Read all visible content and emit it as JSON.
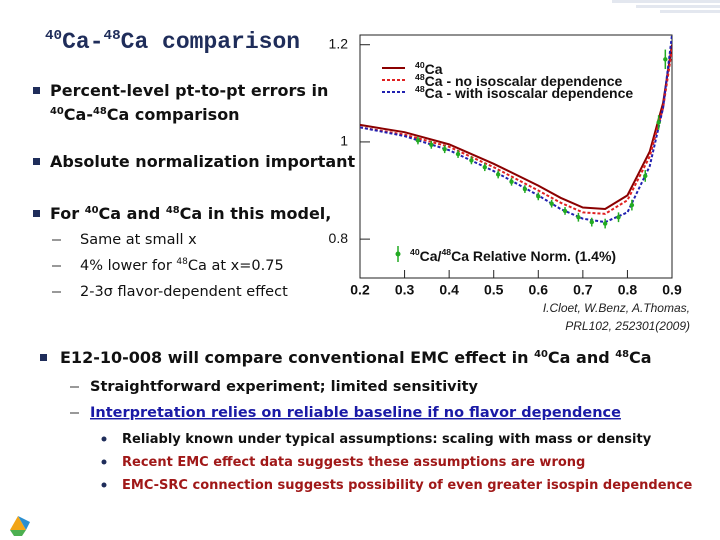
{
  "title": [
    {
      "sup": "40"
    },
    {
      "t": "Ca-"
    },
    {
      "sup": "48"
    },
    {
      "t": "Ca comparison"
    }
  ],
  "left_bullets": [
    {
      "lines": [
        [
          {
            "t": "Percent-level pt-to-pt errors in"
          }
        ],
        [
          {
            "sup": "40"
          },
          {
            "t": "Ca-"
          },
          {
            "sup": "48"
          },
          {
            "t": "Ca comparison"
          }
        ]
      ]
    },
    {
      "lines": [
        [
          {
            "t": "Absolute normalization important"
          }
        ]
      ]
    },
    {
      "lines": [
        [
          {
            "t": "For "
          },
          {
            "sup": "40"
          },
          {
            "t": "Ca and "
          },
          {
            "sup": "48"
          },
          {
            "t": "Ca in this model,"
          }
        ]
      ],
      "children": [
        {
          "lines": [
            [
              {
                "t": "Same at small x"
              }
            ]
          ]
        },
        {
          "lines": [
            [
              {
                "t": "4% lower for "
              },
              {
                "sup": "48"
              },
              {
                "t": "Ca at x=0.75"
              }
            ]
          ]
        },
        {
          "lines": [
            [
              {
                "t": "2-3σ flavor-dependent effect"
              }
            ]
          ]
        }
      ]
    }
  ],
  "bottom_bullets": [
    {
      "lines": [
        [
          {
            "t": "E12-10-008 will compare conventional EMC effect in "
          },
          {
            "sup": "40"
          },
          {
            "t": "Ca and "
          },
          {
            "sup": "48"
          },
          {
            "t": "Ca"
          }
        ]
      ],
      "children": [
        {
          "lines": [
            [
              {
                "t": "Straightforward experiment; limited sensitivity"
              }
            ]
          ]
        },
        {
          "lines": [
            [
              {
                "t": "Interpretation relies on reliable baseline if no flavor dependence"
              }
            ]
          ],
          "color": "#1a1aa6",
          "underline": true,
          "children": [
            {
              "lines": [
                [
                  {
                    "t": "Reliably known under typical assumptions: scaling with mass or density"
                  }
                ]
              ]
            },
            {
              "lines": [
                [
                  {
                    "t": "Recent EMC effect data suggests these assumptions are wrong"
                  }
                ]
              ],
              "color": "#a01818"
            },
            {
              "lines": [
                [
                  {
                    "t": "EMC-SRC connection suggests possibility of even greater isospin dependence"
                  }
                ]
              ],
              "color": "#a01818"
            }
          ]
        }
      ]
    }
  ],
  "chart_data": {
    "type": "line",
    "xlim": [
      0.2,
      0.9
    ],
    "xticks": [
      0.2,
      0.3,
      0.4,
      0.5,
      0.6,
      0.7,
      0.8,
      0.9
    ],
    "ylim": [
      0.72,
      1.22
    ],
    "yticks": [
      0.8,
      1,
      1.2
    ],
    "x": [
      0.2,
      0.3,
      0.4,
      0.5,
      0.6,
      0.65,
      0.7,
      0.75,
      0.8,
      0.85,
      0.88,
      0.9
    ],
    "series": [
      {
        "name": [
          {
            "sup": "40"
          },
          {
            "t": "Ca"
          }
        ],
        "color": "#8b0000",
        "dash": "none",
        "values": [
          1.035,
          1.02,
          0.995,
          0.955,
          0.91,
          0.885,
          0.865,
          0.862,
          0.89,
          0.98,
          1.08,
          1.2
        ]
      },
      {
        "name": [
          {
            "sup": "48"
          },
          {
            "t": "Ca - no isoscalar dependence"
          }
        ],
        "color": "#e02020",
        "dash": "3,2",
        "values": [
          1.03,
          1.015,
          0.99,
          0.948,
          0.9,
          0.875,
          0.855,
          0.852,
          0.88,
          0.97,
          1.07,
          1.19
        ]
      },
      {
        "name": [
          {
            "sup": "48"
          },
          {
            "t": "Ca - with isoscalar dependence"
          }
        ],
        "color": "#2020b0",
        "dash": "3,2",
        "values": [
          1.03,
          1.012,
          0.983,
          0.94,
          0.89,
          0.862,
          0.842,
          0.835,
          0.855,
          0.95,
          1.07,
          1.22
        ]
      }
    ],
    "points": {
      "color": "#22aa22",
      "x": [
        0.33,
        0.36,
        0.39,
        0.42,
        0.45,
        0.48,
        0.51,
        0.54,
        0.57,
        0.6,
        0.63,
        0.66,
        0.69,
        0.72,
        0.75,
        0.78,
        0.81,
        0.84,
        0.87,
        0.885
      ],
      "values": [
        1.003,
        0.994,
        0.985,
        0.975,
        0.962,
        0.948,
        0.933,
        0.918,
        0.903,
        0.888,
        0.873,
        0.858,
        0.845,
        0.835,
        0.832,
        0.845,
        0.87,
        0.93,
        1.04,
        1.17
      ],
      "errors": [
        0.008,
        0.008,
        0.008,
        0.008,
        0.008,
        0.008,
        0.008,
        0.008,
        0.008,
        0.008,
        0.008,
        0.008,
        0.009,
        0.009,
        0.01,
        0.01,
        0.011,
        0.012,
        0.015,
        0.02
      ]
    },
    "annotation": [
      {
        "sup": "40"
      },
      {
        "t": "Ca/"
      },
      {
        "sup": "48"
      },
      {
        "t": "Ca Relative Norm. (1.4%)"
      }
    ],
    "citation": [
      "I.Cloet, W.Benz, A.Thomas,",
      "PRL102, 252301(2009)"
    ]
  }
}
